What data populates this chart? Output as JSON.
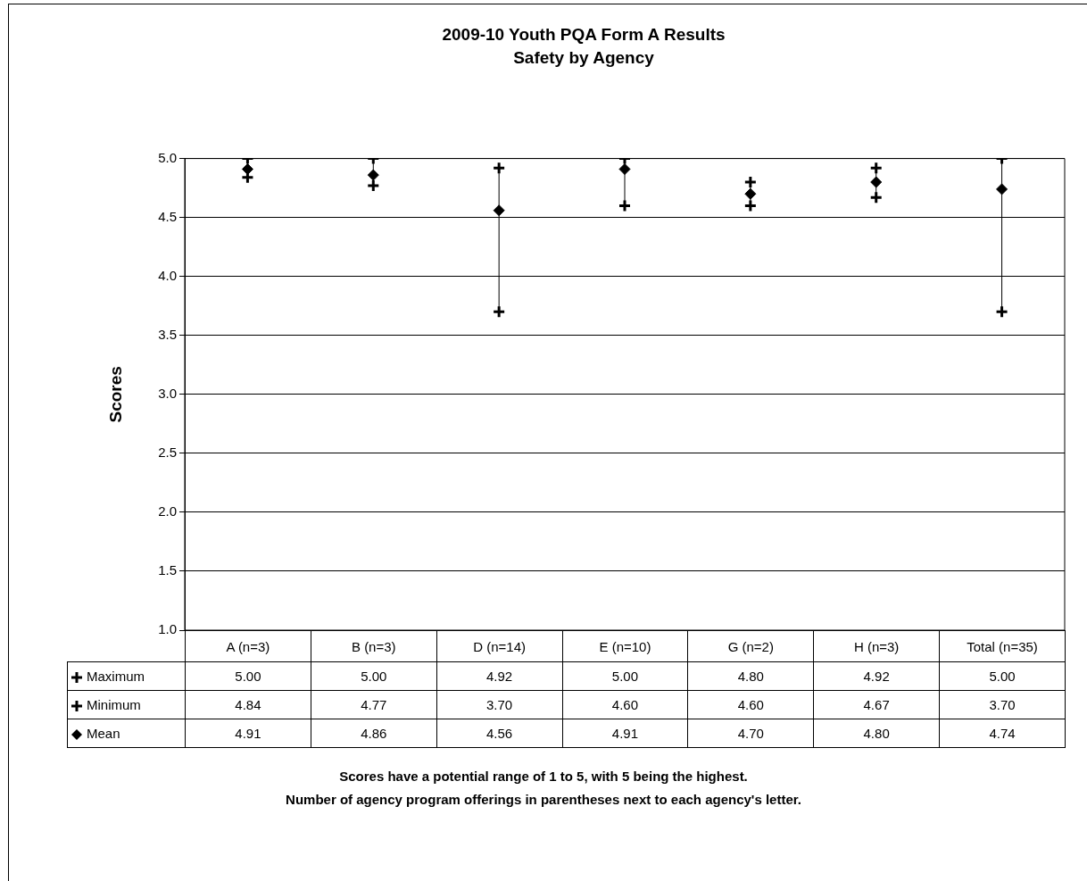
{
  "chart_data": {
    "type": "scatter",
    "title": "2009-10 Youth PQA Form A Results",
    "subtitle": "Safety by Agency",
    "ylabel": "Scores",
    "categories": [
      "A  (n=3)",
      "B (n=3)",
      "D (n=14)",
      "E (n=10)",
      "G (n=2)",
      "H  (n=3)",
      "Total (n=35)"
    ],
    "series": [
      {
        "name": "Maximum",
        "color": "#000000",
        "marker": "cross",
        "values": [
          5.0,
          5.0,
          4.92,
          5.0,
          4.8,
          4.92,
          5.0
        ],
        "value_labels": [
          "5.00",
          "5.00",
          "4.92",
          "5.00",
          "4.80",
          "4.92",
          "5.00"
        ]
      },
      {
        "name": "Minimum",
        "color": "#000000",
        "marker": "cross",
        "values": [
          4.84,
          4.77,
          3.7,
          4.6,
          4.6,
          4.67,
          3.7
        ],
        "value_labels": [
          "4.84",
          "4.77",
          "3.70",
          "4.60",
          "4.60",
          "4.67",
          "3.70"
        ]
      },
      {
        "name": "Mean",
        "color": "#000000",
        "marker": "diamond",
        "values": [
          4.91,
          4.86,
          4.56,
          4.91,
          4.7,
          4.8,
          4.74
        ],
        "value_labels": [
          "4.91",
          "4.86",
          "4.56",
          "4.91",
          "4.70",
          "4.80",
          "4.74"
        ]
      }
    ],
    "ylim": [
      1,
      5
    ],
    "yticks": [
      {
        "value": 1,
        "label": "1.0"
      },
      {
        "value": 1.5,
        "label": "1.5"
      },
      {
        "value": 2,
        "label": "2.0"
      },
      {
        "value": 2.5,
        "label": "2.5"
      },
      {
        "value": 3,
        "label": "3.0"
      },
      {
        "value": 3.5,
        "label": "3.5"
      },
      {
        "value": 4,
        "label": "4.0"
      },
      {
        "value": 4.5,
        "label": "4.5"
      },
      {
        "value": 5,
        "label": "5.0"
      }
    ],
    "grid": "y",
    "legend": "bottom left",
    "annotations": [
      "Scores have a potential range of 1 to 5, with 5 being the highest.",
      "Number of agency program offerings in parentheses next to each agency's letter."
    ]
  }
}
